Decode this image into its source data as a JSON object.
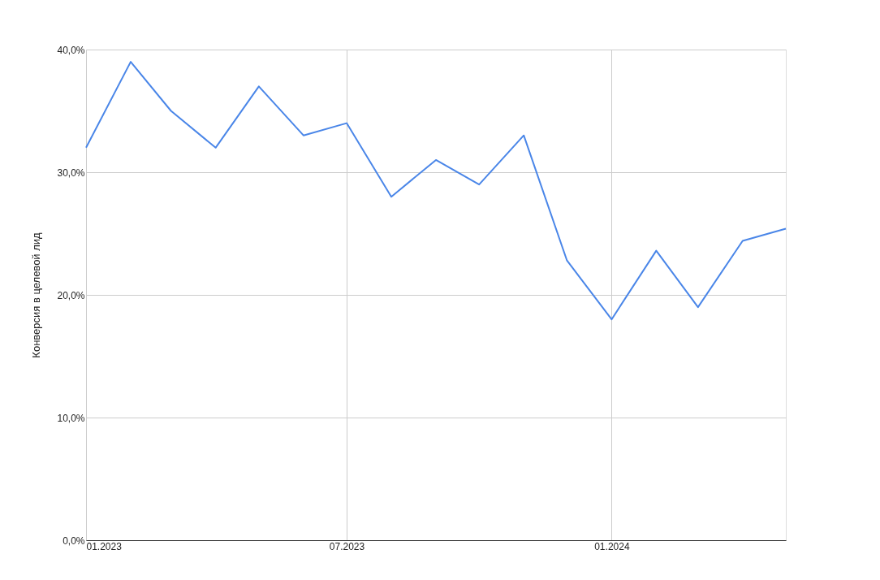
{
  "chart_data": {
    "type": "line",
    "ylabel": "Конверсия в целевой лид",
    "x": [
      "2023-01",
      "2023-02",
      "2023-03",
      "2023-04",
      "2023-05",
      "2023-06",
      "2023-07",
      "2023-08",
      "2023-09",
      "2023-10",
      "2023-11",
      "2023-12",
      "2024-01",
      "2024-02",
      "2024-03",
      "2024-04",
      "2024-05"
    ],
    "series": [
      {
        "color": "#4a86e8",
        "values": [
          32,
          39,
          35,
          32,
          37,
          33,
          34,
          28,
          31,
          29,
          33,
          22.8,
          18,
          23.6,
          19,
          24.4,
          25.4
        ]
      }
    ],
    "xlim": [
      "2023-01",
      "2024-05"
    ],
    "xticks": [
      {
        "value": "2023-01",
        "label": "01.2023"
      },
      {
        "value": "2023-07",
        "label": "07.2023"
      },
      {
        "value": "2024-01",
        "label": "01.2024"
      }
    ],
    "ylim": [
      0,
      40
    ],
    "yticks": [
      {
        "value": 0,
        "label": "0,0%"
      },
      {
        "value": 10,
        "label": "10,0%"
      },
      {
        "value": 20,
        "label": "20,0%"
      },
      {
        "value": 30,
        "label": "30,0%"
      },
      {
        "value": 40,
        "label": "40,0%"
      }
    ],
    "grid": true,
    "marker": "none",
    "line_style": "solid"
  }
}
